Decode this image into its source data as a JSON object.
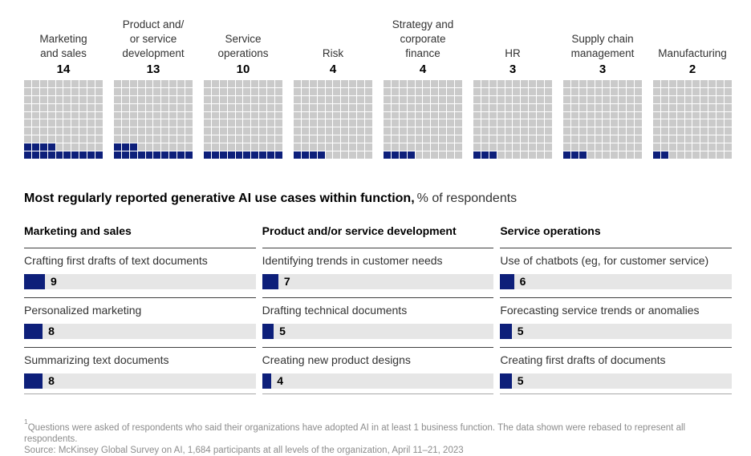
{
  "colors": {
    "fill_navy": "#0d1f7a",
    "waffle_empty_gray": "#cacaca",
    "bar_track_gray": "#e6e6e6",
    "separator_dark": "#3f3f3f",
    "separator_light": "#a9a9a9"
  },
  "title": {
    "bold": "Most regularly reported generative AI use cases within function,",
    "units": "% of respondents"
  },
  "chart_data": [
    {
      "type": "waffle",
      "units": "% of respondents",
      "grid_rows": 10,
      "grid_cols": 10,
      "categories": [
        "Marketing and sales",
        "Product and/or service development",
        "Service operations",
        "Risk",
        "Strategy and corporate finance",
        "HR",
        "Supply chain management",
        "Manufacturing"
      ],
      "display_lines": [
        [
          "Marketing",
          "and sales"
        ],
        [
          "Product and/",
          "or service",
          "development"
        ],
        [
          "Service",
          "operations"
        ],
        [
          "Risk"
        ],
        [
          "Strategy and",
          "corporate",
          "finance"
        ],
        [
          "HR"
        ],
        [
          "Supply chain",
          "management"
        ],
        [
          "Manufacturing"
        ]
      ],
      "values": [
        14,
        13,
        10,
        4,
        4,
        3,
        3,
        2
      ]
    },
    {
      "type": "bar",
      "title": "Most regularly reported generative AI use cases within function",
      "units": "% of respondents",
      "xlim": [
        0,
        100
      ],
      "groups": [
        {
          "category": "Marketing and sales",
          "items": [
            {
              "label": "Crafting first drafts of text documents",
              "value": 9
            },
            {
              "label": "Personalized marketing",
              "value": 8
            },
            {
              "label": "Summarizing text documents",
              "value": 8
            }
          ]
        },
        {
          "category": "Product and/or service development",
          "items": [
            {
              "label": "Identifying trends in customer needs",
              "value": 7
            },
            {
              "label": "Drafting technical documents",
              "value": 5
            },
            {
              "label": "Creating new product designs",
              "value": 4
            }
          ]
        },
        {
          "category": "Service operations",
          "items": [
            {
              "label": "Use of chatbots (eg, for customer service)",
              "value": 6
            },
            {
              "label": "Forecasting service trends or anomalies",
              "value": 5
            },
            {
              "label": "Creating first drafts of documents",
              "value": 5
            }
          ]
        }
      ]
    }
  ],
  "footer": {
    "footnote_marker": "1",
    "footnote": "Questions were asked of respondents who said their organizations have adopted AI in at least 1 business function. The data shown were rebased to represent all respondents.",
    "source": "Source: McKinsey Global Survey on AI, 1,684 participants at all levels of the organization, April 11–21, 2023"
  }
}
